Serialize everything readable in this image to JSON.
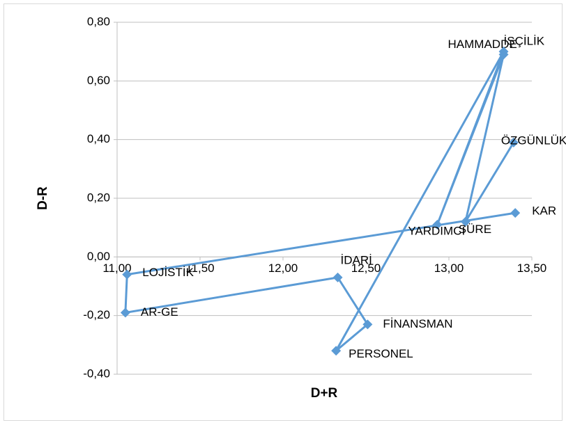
{
  "chart_data": {
    "type": "scatter",
    "xlabel": "D+R",
    "ylabel": "D-R",
    "series": [
      {
        "color": "#5b9bd5",
        "labels": [
          "ÖZGÜNLÜK",
          "SÜRE",
          "HAMMADDE",
          "YARDIMCI",
          "İŞÇİLİK",
          "PERSONEL",
          "FİNANSMAN",
          "İDARİ",
          "AR-GE",
          "LOJİSTİK",
          "KAR"
        ],
        "x": [
          13.39,
          13.1,
          13.33,
          12.93,
          13.33,
          12.32,
          12.51,
          12.33,
          11.05,
          11.06,
          13.4
        ],
        "values": [
          0.39,
          0.12,
          0.69,
          0.11,
          0.7,
          -0.32,
          -0.23,
          -0.07,
          -0.19,
          -0.06,
          0.15
        ]
      }
    ],
    "xlim": [
      11,
      13.5
    ],
    "xticks": [
      {
        "value": 11,
        "label": "11,00"
      },
      {
        "value": 11.5,
        "label": "11,50"
      },
      {
        "value": 12,
        "label": "12,00"
      },
      {
        "value": 12.5,
        "label": "12,50"
      },
      {
        "value": 13,
        "label": "13,00"
      },
      {
        "value": 13.5,
        "label": "13,50"
      }
    ],
    "ylim": [
      -0.4,
      0.8
    ],
    "yticks": [
      {
        "value": -0.4,
        "label": "-0,40"
      },
      {
        "value": -0.2,
        "label": "-0,20"
      },
      {
        "value": 0,
        "label": "0,00"
      },
      {
        "value": 0.2,
        "label": "0,20"
      },
      {
        "value": 0.4,
        "label": "0,40"
      },
      {
        "value": 0.6,
        "label": "0,60"
      },
      {
        "value": 0.8,
        "label": "0,80"
      }
    ],
    "grid": true
  }
}
